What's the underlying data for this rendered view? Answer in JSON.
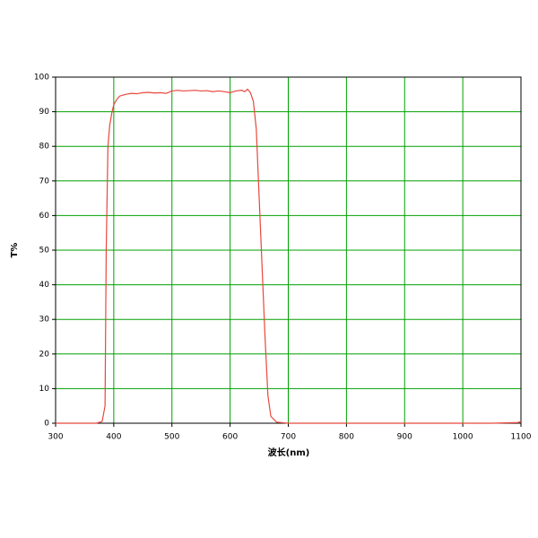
{
  "chart_data": {
    "type": "line",
    "x_label": "波长(nm)",
    "y_label": "T%",
    "x": [
      300,
      370,
      380,
      385,
      387,
      390,
      393,
      397,
      400,
      405,
      410,
      420,
      430,
      440,
      450,
      460,
      470,
      480,
      490,
      500,
      510,
      520,
      530,
      540,
      550,
      560,
      570,
      580,
      590,
      600,
      610,
      620,
      625,
      630,
      635,
      640,
      645,
      650,
      655,
      660,
      665,
      670,
      680,
      700,
      800,
      900,
      1000,
      1050,
      1095,
      1100
    ],
    "series": [
      {
        "name": "T%",
        "color": "#e8473c",
        "values": [
          0,
          0,
          0.5,
          5,
          50,
          80,
          86,
          90,
          92,
          93.5,
          94.5,
          95,
          95.3,
          95.2,
          95.5,
          95.6,
          95.4,
          95.5,
          95.3,
          96,
          96.2,
          96,
          96.1,
          96.2,
          96,
          96.1,
          95.8,
          96,
          95.8,
          95.5,
          96,
          96.2,
          95.8,
          96.5,
          95.5,
          93,
          85,
          65,
          45,
          25,
          8,
          2,
          0.3,
          0,
          0,
          0,
          0,
          0,
          0.2,
          0.5
        ]
      }
    ],
    "xlim": [
      300,
      1100
    ],
    "xticks": [
      300,
      400,
      500,
      600,
      700,
      800,
      900,
      1000,
      1100
    ],
    "ylim": [
      0,
      100
    ],
    "yticks": [
      0,
      10,
      20,
      30,
      40,
      50,
      60,
      70,
      80,
      90,
      100
    ],
    "grid": true,
    "grid_color": "#00a000"
  }
}
